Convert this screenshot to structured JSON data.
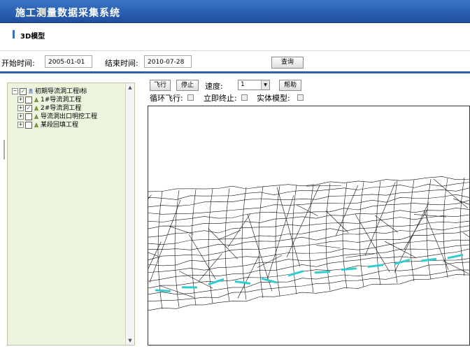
{
  "app": {
    "title": "施工测量数据采集系统"
  },
  "section": {
    "title": "3D模型"
  },
  "filter": {
    "start_label": "开始时间:",
    "start_value": "2005-01-01",
    "end_label": "结束时间:",
    "end_value": "2010-07-28",
    "query_label": "查询"
  },
  "tree": {
    "root": {
      "label": "初期导流洞工程I标",
      "checked": true,
      "expanded": true
    },
    "children": [
      {
        "label": "1#导流洞工程",
        "checked": false,
        "icon": "project-node-icon"
      },
      {
        "label": "2#导流洞工程",
        "checked": true,
        "icon": "project-node-icon"
      },
      {
        "label": "导流洞出口明挖工程",
        "checked": false,
        "icon": "project-node-icon"
      },
      {
        "label": "某段回填工程",
        "checked": false,
        "icon": "project-node-icon"
      }
    ]
  },
  "controls": {
    "fly_label": "飞行",
    "stop_label": "停止",
    "speed_label": "速度:",
    "speed_value": "1",
    "help_label": "帮助",
    "loop_label": "循环飞行:",
    "immediate_stop_label": "立即终止:",
    "solid_label": "实体模型:"
  },
  "colors": {
    "title_bar": "#2d5fb5",
    "tree_bg": "#eef5df",
    "accent_cyan": "#33cccc"
  }
}
